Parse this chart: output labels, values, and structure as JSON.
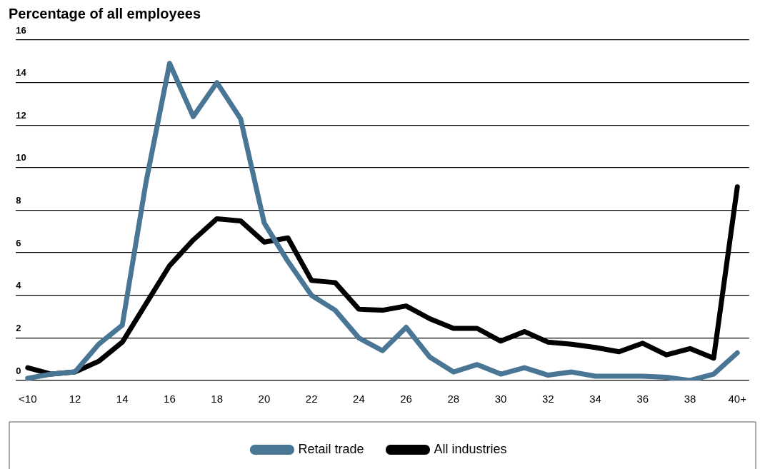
{
  "chart_data": {
    "type": "line",
    "title": "Percentage of all employees",
    "categories": [
      "<10",
      null,
      "12",
      null,
      "14",
      null,
      "16",
      null,
      "18",
      null,
      "20",
      null,
      "22",
      null,
      "24",
      null,
      "26",
      null,
      "28",
      null,
      "30",
      null,
      "32",
      null,
      "34",
      null,
      "36",
      null,
      "38",
      null,
      "40+"
    ],
    "series": [
      {
        "name": "Retail trade",
        "color": "#4a7696",
        "values": [
          0.1,
          0.3,
          0.4,
          1.7,
          2.6,
          9.3,
          14.9,
          12.4,
          14.0,
          12.3,
          7.4,
          5.6,
          4.0,
          3.3,
          2.0,
          1.4,
          2.5,
          1.1,
          0.4,
          0.75,
          0.3,
          0.6,
          0.25,
          0.4,
          0.2,
          0.2,
          0.2,
          0.15,
          0.0,
          0.3,
          1.3
        ]
      },
      {
        "name": "All industries",
        "color": "#000000",
        "values": [
          0.6,
          0.3,
          0.4,
          0.9,
          1.8,
          3.6,
          5.4,
          6.6,
          7.6,
          7.5,
          6.5,
          6.7,
          4.7,
          4.6,
          3.35,
          3.3,
          3.5,
          2.9,
          2.45,
          2.45,
          1.85,
          2.3,
          1.8,
          1.7,
          1.55,
          1.35,
          1.75,
          1.2,
          1.5,
          1.05,
          9.1
        ]
      }
    ],
    "ylim": [
      0,
      16
    ],
    "yticks": [
      0,
      2,
      4,
      6,
      8,
      10,
      12,
      14,
      16
    ],
    "grid": "y",
    "legend": "bottom",
    "marker": "none",
    "line_style": "solid"
  }
}
